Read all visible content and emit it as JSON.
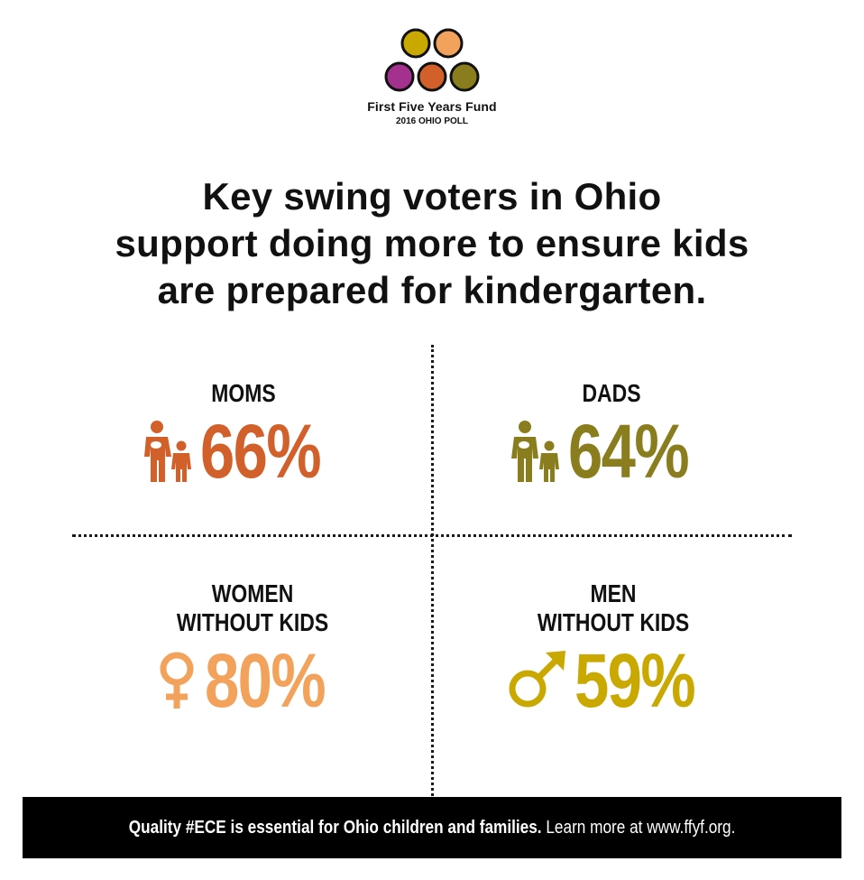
{
  "logo": {
    "name": "First Five Years Fund",
    "subtitle": "2016 OHIO POLL",
    "circle_colors": [
      "#c9a800",
      "#f2a25a",
      "#a5318f",
      "#d2602a",
      "#8a7d1e"
    ]
  },
  "headline": {
    "line1": "Key swing voters in Ohio",
    "line2": "support doing more to ensure kids",
    "line3": "are prepared for kindergarten."
  },
  "stats": [
    {
      "label_line1": "MOMS",
      "label_line2": "",
      "value": "66%",
      "color": "#d2602a",
      "icon": "mother-child-icon"
    },
    {
      "label_line1": "DADS",
      "label_line2": "",
      "value": "64%",
      "color": "#8a7d1e",
      "icon": "father-child-icon"
    },
    {
      "label_line1": "WOMEN",
      "label_line2": "WITHOUT KIDS",
      "value": "80%",
      "color": "#f2a25a",
      "icon": "female-symbol-icon"
    },
    {
      "label_line1": "MEN",
      "label_line2": "WITHOUT KIDS",
      "value": "59%",
      "color": "#c9a800",
      "icon": "male-symbol-icon"
    }
  ],
  "footer": {
    "bold": "Quality #ECE is essential for Ohio children and families.",
    "regular": " Learn more at www.ffyf.org."
  }
}
